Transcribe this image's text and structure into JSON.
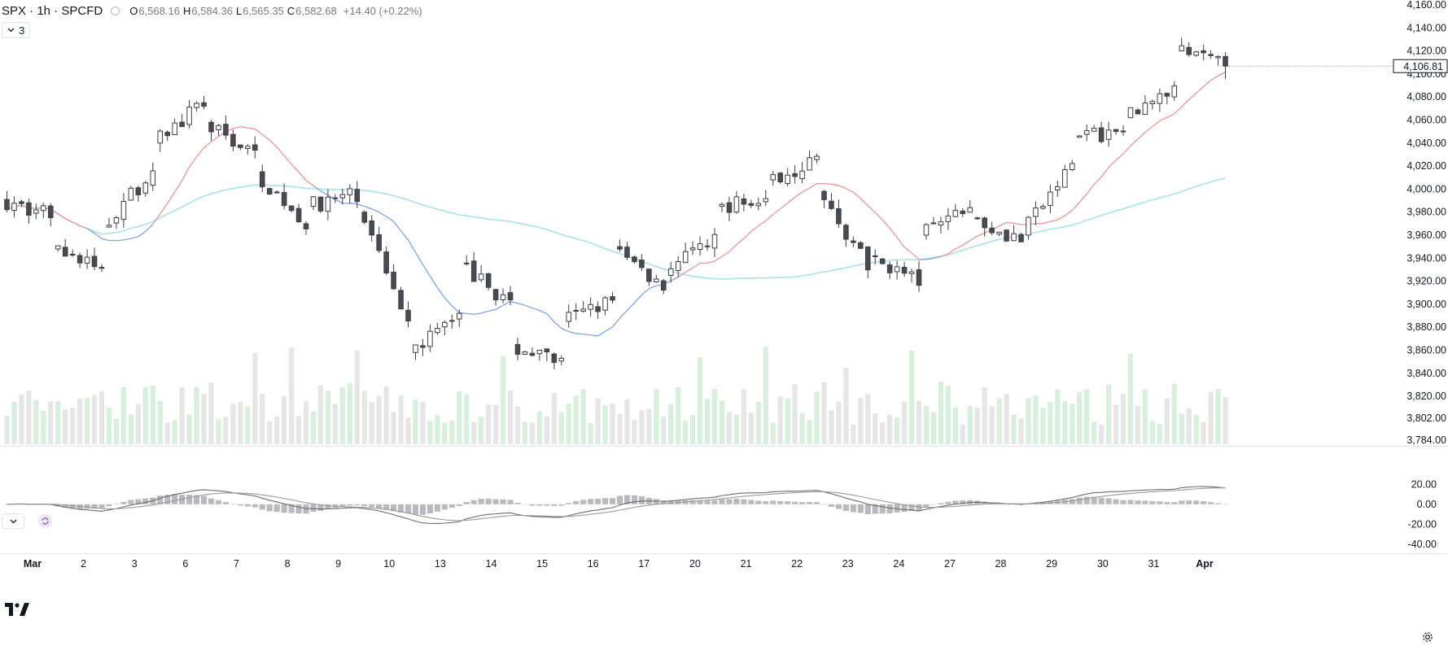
{
  "header": {
    "symbol": "SPX · 1h · SPCFD",
    "open_label": "O",
    "open": "6,568.16",
    "high_label": "H",
    "high": "6,584.36",
    "low_label": "L",
    "low": "6,565.35",
    "close_label": "C",
    "close": "6,582.68",
    "change": "+14.40 (+0.22%)"
  },
  "indicator_toggle": {
    "count": "3"
  },
  "last_price_label": "4,106.81",
  "colors": {
    "up_body": "#ffffff",
    "down_body": "#4a4a52",
    "candle_outline": "#3c3c44",
    "ma_fast_above": "#f28b8b",
    "ma_fast_below": "#6ea0ee",
    "ma_slow": "#a8e3e6",
    "vol_up": "#d7f0dc",
    "vol_down": "#e6e6e6",
    "macd": "#6b6b6b",
    "hist": "#b9b9be"
  },
  "icons": {
    "collapse": "chevron-down-icon",
    "pane": "chevron-down-icon",
    "sync": "sync-icon",
    "logo": "tradingview-logo",
    "settings": "gear-icon"
  },
  "chart_data": {
    "type": "candlestick",
    "price_axis": {
      "ticks": [
        "4,160.00",
        "4,140.00",
        "4,120.00",
        "4,100.00",
        "4,080.00",
        "4,060.00",
        "4,040.00",
        "4,020.00",
        "4,000.00",
        "3,980.00",
        "3,960.00",
        "3,940.00",
        "3,920.00",
        "3,900.00",
        "3,880.00",
        "3,860.00",
        "3,840.00",
        "3,820.00",
        "3,802.00",
        "3,784.00"
      ],
      "ylim": [
        3784,
        4160
      ]
    },
    "indicator_axis": {
      "ticks": [
        "20.00",
        "0.00",
        "-20.00",
        "-40.00"
      ],
      "ylim": [
        -45,
        30
      ]
    },
    "time_axis": {
      "labels": [
        "Mar",
        "2",
        "3",
        "6",
        "7",
        "8",
        "9",
        "10",
        "13",
        "14",
        "15",
        "16",
        "17",
        "20",
        "21",
        "22",
        "23",
        "24",
        "27",
        "28",
        "29",
        "30",
        "31",
        "Apr"
      ]
    },
    "session_anchors": [
      [
        3991,
        3978
      ],
      [
        3948,
        3930
      ],
      [
        3967,
        4016
      ],
      [
        4040,
        4074
      ],
      [
        4058,
        4030
      ],
      [
        4015,
        3970
      ],
      [
        3985,
        3995
      ],
      [
        3980,
        3890
      ],
      [
        3858,
        3892
      ],
      [
        3935,
        3900
      ],
      [
        3865,
        3848
      ],
      [
        3885,
        3903
      ],
      [
        3950,
        3915
      ],
      [
        3925,
        3958
      ],
      [
        3985,
        3990
      ],
      [
        4008,
        4025
      ],
      [
        3998,
        3935
      ],
      [
        3942,
        3920
      ],
      [
        3960,
        3985
      ],
      [
        3975,
        3956
      ],
      [
        3960,
        4022
      ],
      [
        4045,
        4050
      ],
      [
        4062,
        4088
      ],
      [
        4120,
        4107
      ]
    ],
    "candles_per_session": 7,
    "random_seed": 7
  }
}
